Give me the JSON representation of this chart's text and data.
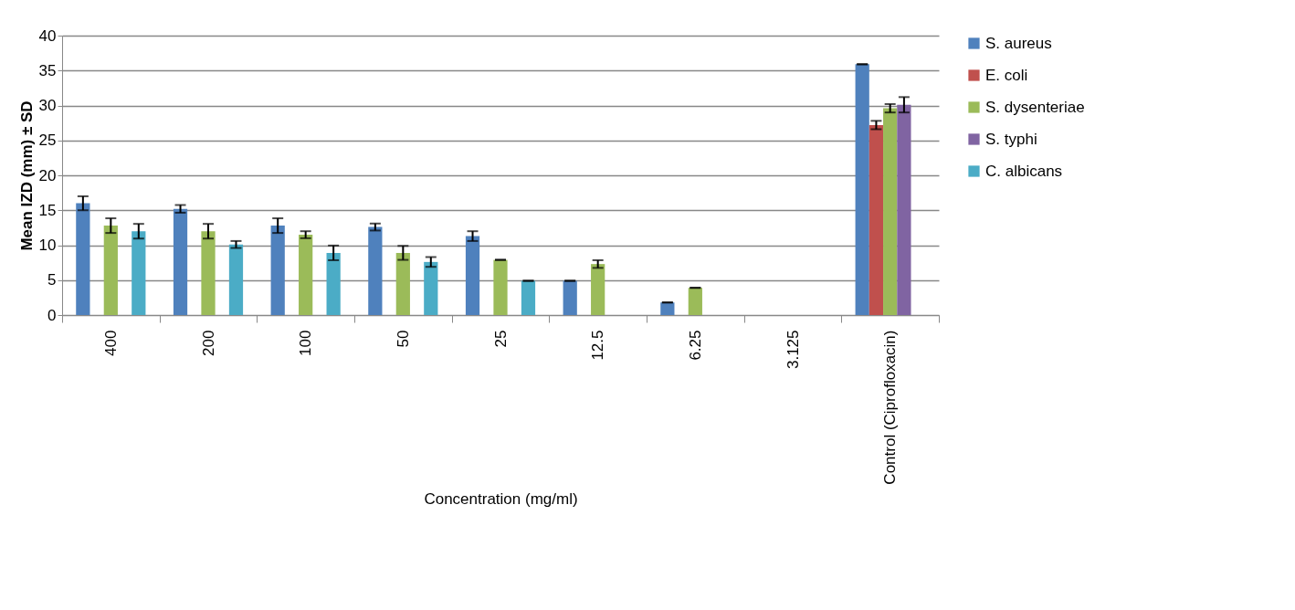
{
  "chart_data": {
    "type": "bar",
    "xlabel": "Concentration (mg/ml)",
    "ylabel": "Mean IZD (mm) ± SD",
    "categories": [
      "400",
      "200",
      "100",
      "50",
      "25",
      "12.5",
      "6.25",
      "3.125",
      "Control (Ciprofloxacin)"
    ],
    "ylim": [
      0,
      40
    ],
    "yticks": [
      0,
      5,
      10,
      15,
      20,
      25,
      30,
      35,
      40
    ],
    "grid": "y",
    "legend": "right",
    "series": [
      {
        "name": "S. aureus",
        "color": "#4f81bd",
        "values": [
          16.0,
          15.2,
          12.8,
          12.6,
          11.3,
          4.9,
          1.8,
          null,
          35.9
        ],
        "errors": [
          1,
          0.55,
          1.05,
          0.5,
          0.7,
          0,
          0,
          null,
          0
        ]
      },
      {
        "name": "E. coli",
        "color": "#c0504d",
        "values": [
          null,
          null,
          null,
          null,
          null,
          null,
          null,
          null,
          27.2
        ],
        "errors": [
          null,
          null,
          null,
          null,
          null,
          null,
          null,
          null,
          0.6
        ]
      },
      {
        "name": "S. dysenteriae",
        "color": "#9bbb59",
        "values": [
          12.8,
          12.0,
          11.5,
          8.9,
          7.9,
          7.3,
          3.9,
          null,
          29.6
        ],
        "errors": [
          1.05,
          1.05,
          0.5,
          1,
          0,
          0.55,
          0,
          null,
          0.6
        ]
      },
      {
        "name": "S. typhi",
        "color": "#8064a2",
        "values": [
          null,
          null,
          null,
          null,
          null,
          null,
          null,
          null,
          30.1
        ],
        "errors": [
          null,
          null,
          null,
          null,
          null,
          null,
          null,
          null,
          1.1
        ]
      },
      {
        "name": "C. albicans",
        "color": "#4bacc6",
        "values": [
          12.0,
          10.1,
          8.9,
          7.6,
          4.9,
          null,
          null,
          null,
          null
        ],
        "errors": [
          1.05,
          0.5,
          1.05,
          0.7,
          0,
          null,
          null,
          null,
          null
        ]
      }
    ]
  }
}
